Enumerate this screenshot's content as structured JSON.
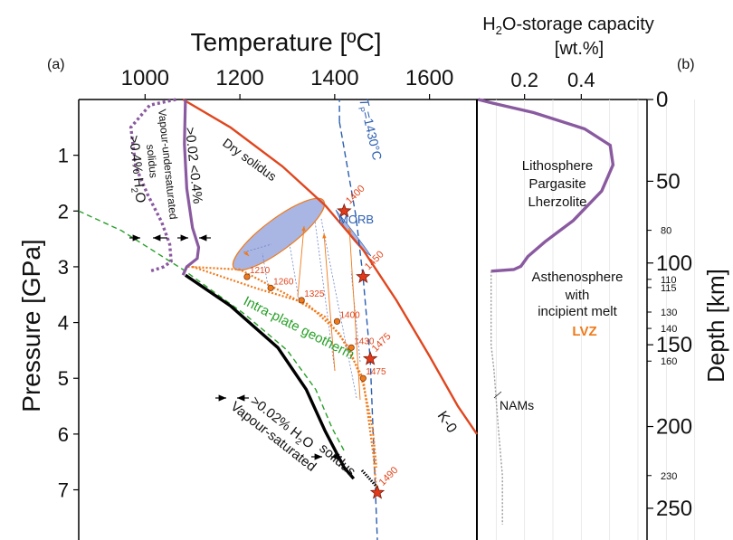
{
  "panel_a_label": "(a)",
  "panel_b_label": "(b)",
  "colors": {
    "dry_solidus": "#e0461e",
    "vapour_saturated": "#000000",
    "vapour_undersaturated": "#8a5aa0",
    "geotherm": "#2aa02a",
    "adiabat": "#2a5db0",
    "path": "#f07a1a",
    "morb_fill": "#a9b5e3",
    "star": "#e03a1a",
    "capacity": "#8a5aa0",
    "nams": "#999999"
  },
  "chart_data": [
    {
      "type": "line",
      "panel": "a",
      "xlabel": "Temperature [ºC]",
      "ylabel": "Pressure [GPa]",
      "xlim": [
        860,
        1700
      ],
      "ylim": [
        0,
        7.9
      ],
      "x_ticks": [
        1000,
        1200,
        1400,
        1600
      ],
      "y_ticks": [
        1,
        2,
        3,
        4,
        5,
        6,
        7
      ],
      "series": [
        {
          "key": "dry",
          "points": [
            [
              1080,
              0
            ],
            [
              1180,
              0.5
            ],
            [
              1290,
              1.2
            ],
            [
              1380,
              1.9
            ],
            [
              1460,
              2.7
            ],
            [
              1530,
              3.6
            ],
            [
              1600,
              4.6
            ],
            [
              1660,
              5.5
            ],
            [
              1700,
              6.0
            ]
          ]
        },
        {
          "key": "vsat",
          "points": [
            [
              1085,
              3.15
            ],
            [
              1180,
              3.7
            ],
            [
              1280,
              4.45
            ],
            [
              1340,
              5.2
            ],
            [
              1380,
              5.95
            ],
            [
              1420,
              6.6
            ],
            [
              1440,
              6.8
            ]
          ]
        },
        {
          "key": "vunder_solid",
          "points": [
            [
              1085,
              0
            ],
            [
              1083,
              0.8
            ],
            [
              1088,
              1.6
            ],
            [
              1100,
              2.3
            ],
            [
              1113,
              2.65
            ],
            [
              1110,
              2.85
            ],
            [
              1088,
              3.0
            ],
            [
              1080,
              3.15
            ]
          ]
        },
        {
          "key": "vunder_dotted",
          "points": [
            [
              1065,
              0
            ],
            [
              1010,
              0.1
            ],
            [
              970,
              0.5
            ],
            [
              980,
              1.2
            ],
            [
              1005,
              1.7
            ],
            [
              1035,
              2.2
            ],
            [
              1052,
              2.6
            ],
            [
              1055,
              2.9
            ],
            [
              1040,
              3.0
            ],
            [
              1010,
              3.08
            ]
          ]
        },
        {
          "key": "geotherm",
          "points": [
            [
              860,
              2.0
            ],
            [
              950,
              2.35
            ],
            [
              1080,
              3.05
            ],
            [
              1210,
              3.85
            ],
            [
              1300,
              4.5
            ],
            [
              1360,
              5.2
            ],
            [
              1395,
              5.9
            ],
            [
              1420,
              6.3
            ]
          ]
        },
        {
          "key": "adiabat",
          "points": [
            [
              1410,
              0.4
            ],
            [
              1445,
              2.1
            ],
            [
              1460,
              3.2
            ],
            [
              1475,
              4.65
            ],
            [
              1490,
              7.9
            ]
          ]
        },
        {
          "key": "adiabat_top",
          "points": [
            [
              1410,
              0.4
            ],
            [
              1410,
              0
            ]
          ]
        },
        {
          "key": "path1",
          "points": [
            [
              1090,
              3.0
            ],
            [
              1200,
              3.05
            ],
            [
              1300,
              3.5
            ],
            [
              1380,
              3.9
            ],
            [
              1430,
              4.45
            ],
            [
              1460,
              5.1
            ],
            [
              1480,
              5.9
            ],
            [
              1488,
              6.6
            ]
          ]
        },
        {
          "key": "path2",
          "points": [
            [
              1100,
              3.0
            ],
            [
              1240,
              3.4
            ],
            [
              1340,
              3.65
            ],
            [
              1410,
              4.2
            ],
            [
              1460,
              5.0
            ],
            [
              1482,
              6.4
            ],
            [
              1488,
              7.0
            ]
          ]
        }
      ],
      "points": [
        {
          "label": "1210",
          "x": 1215,
          "y": 3.18
        },
        {
          "label": "1260",
          "x": 1265,
          "y": 3.38
        },
        {
          "label": "1325",
          "x": 1330,
          "y": 3.6
        },
        {
          "label": "1400",
          "x": 1405,
          "y": 3.98
        },
        {
          "label": "1430",
          "x": 1435,
          "y": 4.45
        },
        {
          "label": "1475",
          "x": 1460,
          "y": 5.0
        }
      ],
      "stars": [
        {
          "label": "1400",
          "x": 1420,
          "y": 2.0
        },
        {
          "label": "1450",
          "x": 1460,
          "y": 3.18
        },
        {
          "label": "1475",
          "x": 1475,
          "y": 4.65
        },
        {
          "label": "1490",
          "x": 1490,
          "y": 7.05
        }
      ],
      "annotations": {
        "dry_solidus": "Dry solidus",
        "tp": "T",
        "tp_sub": "P",
        "tp_rest": "=1430°C",
        "morb": "MORB",
        "kzero": "K-0",
        "intraplate": "Intra-plate geotherm",
        "vsat_1": "Vapour-saturated",
        "vsat_2": "solidus",
        "vsat_pct": ">0.02% H",
        "vsat_pct_o": "O",
        "vun_1": "Vapour-undersaturated",
        "vun_2": "solidus",
        "vun_range": ">0.02 <0.4%",
        "vun_pct": ">0.4% H",
        "vun_pct_o": "O",
        "sub2": "2"
      }
    },
    {
      "type": "line",
      "panel": "b",
      "title_prefix": "H",
      "title_sub": "2",
      "title_rest": "O-storage capacity",
      "xlabel": "[wt.%]",
      "ylabel": "Depth [km]",
      "xlim": [
        0,
        0.6
      ],
      "ylim": [
        0,
        260
      ],
      "x_ticks": [
        0.2,
        0.4
      ],
      "y_ticks_major": [
        0,
        50,
        100,
        150,
        200,
        250
      ],
      "y_ticks_minor": [
        80,
        110,
        115,
        130,
        140,
        160,
        230
      ],
      "series": [
        {
          "key": "capacity",
          "points": [
            [
              0.005,
              0
            ],
            [
              0.05,
              2
            ],
            [
              0.2,
              8
            ],
            [
              0.38,
              18
            ],
            [
              0.47,
              28
            ],
            [
              0.48,
              40
            ],
            [
              0.44,
              56
            ],
            [
              0.34,
              74
            ],
            [
              0.24,
              87
            ],
            [
              0.18,
              96
            ],
            [
              0.155,
              102
            ],
            [
              0.13,
              104
            ],
            [
              0.05,
              105
            ]
          ]
        },
        {
          "key": "nams",
          "points": [
            [
              0.05,
              105
            ],
            [
              0.05,
              150
            ],
            [
              0.06,
              165
            ],
            [
              0.075,
              200
            ],
            [
              0.09,
              230
            ],
            [
              0.09,
              260
            ]
          ]
        }
      ],
      "labels": {
        "litho_1": "Lithosphere",
        "litho_2": "Pargasite",
        "litho_3": "Lherzolite",
        "astheno_1": "Asthenosphere",
        "astheno_2": "with",
        "astheno_3": "incipient melt",
        "lvz": "LVZ",
        "nams": "NAMs"
      }
    }
  ]
}
